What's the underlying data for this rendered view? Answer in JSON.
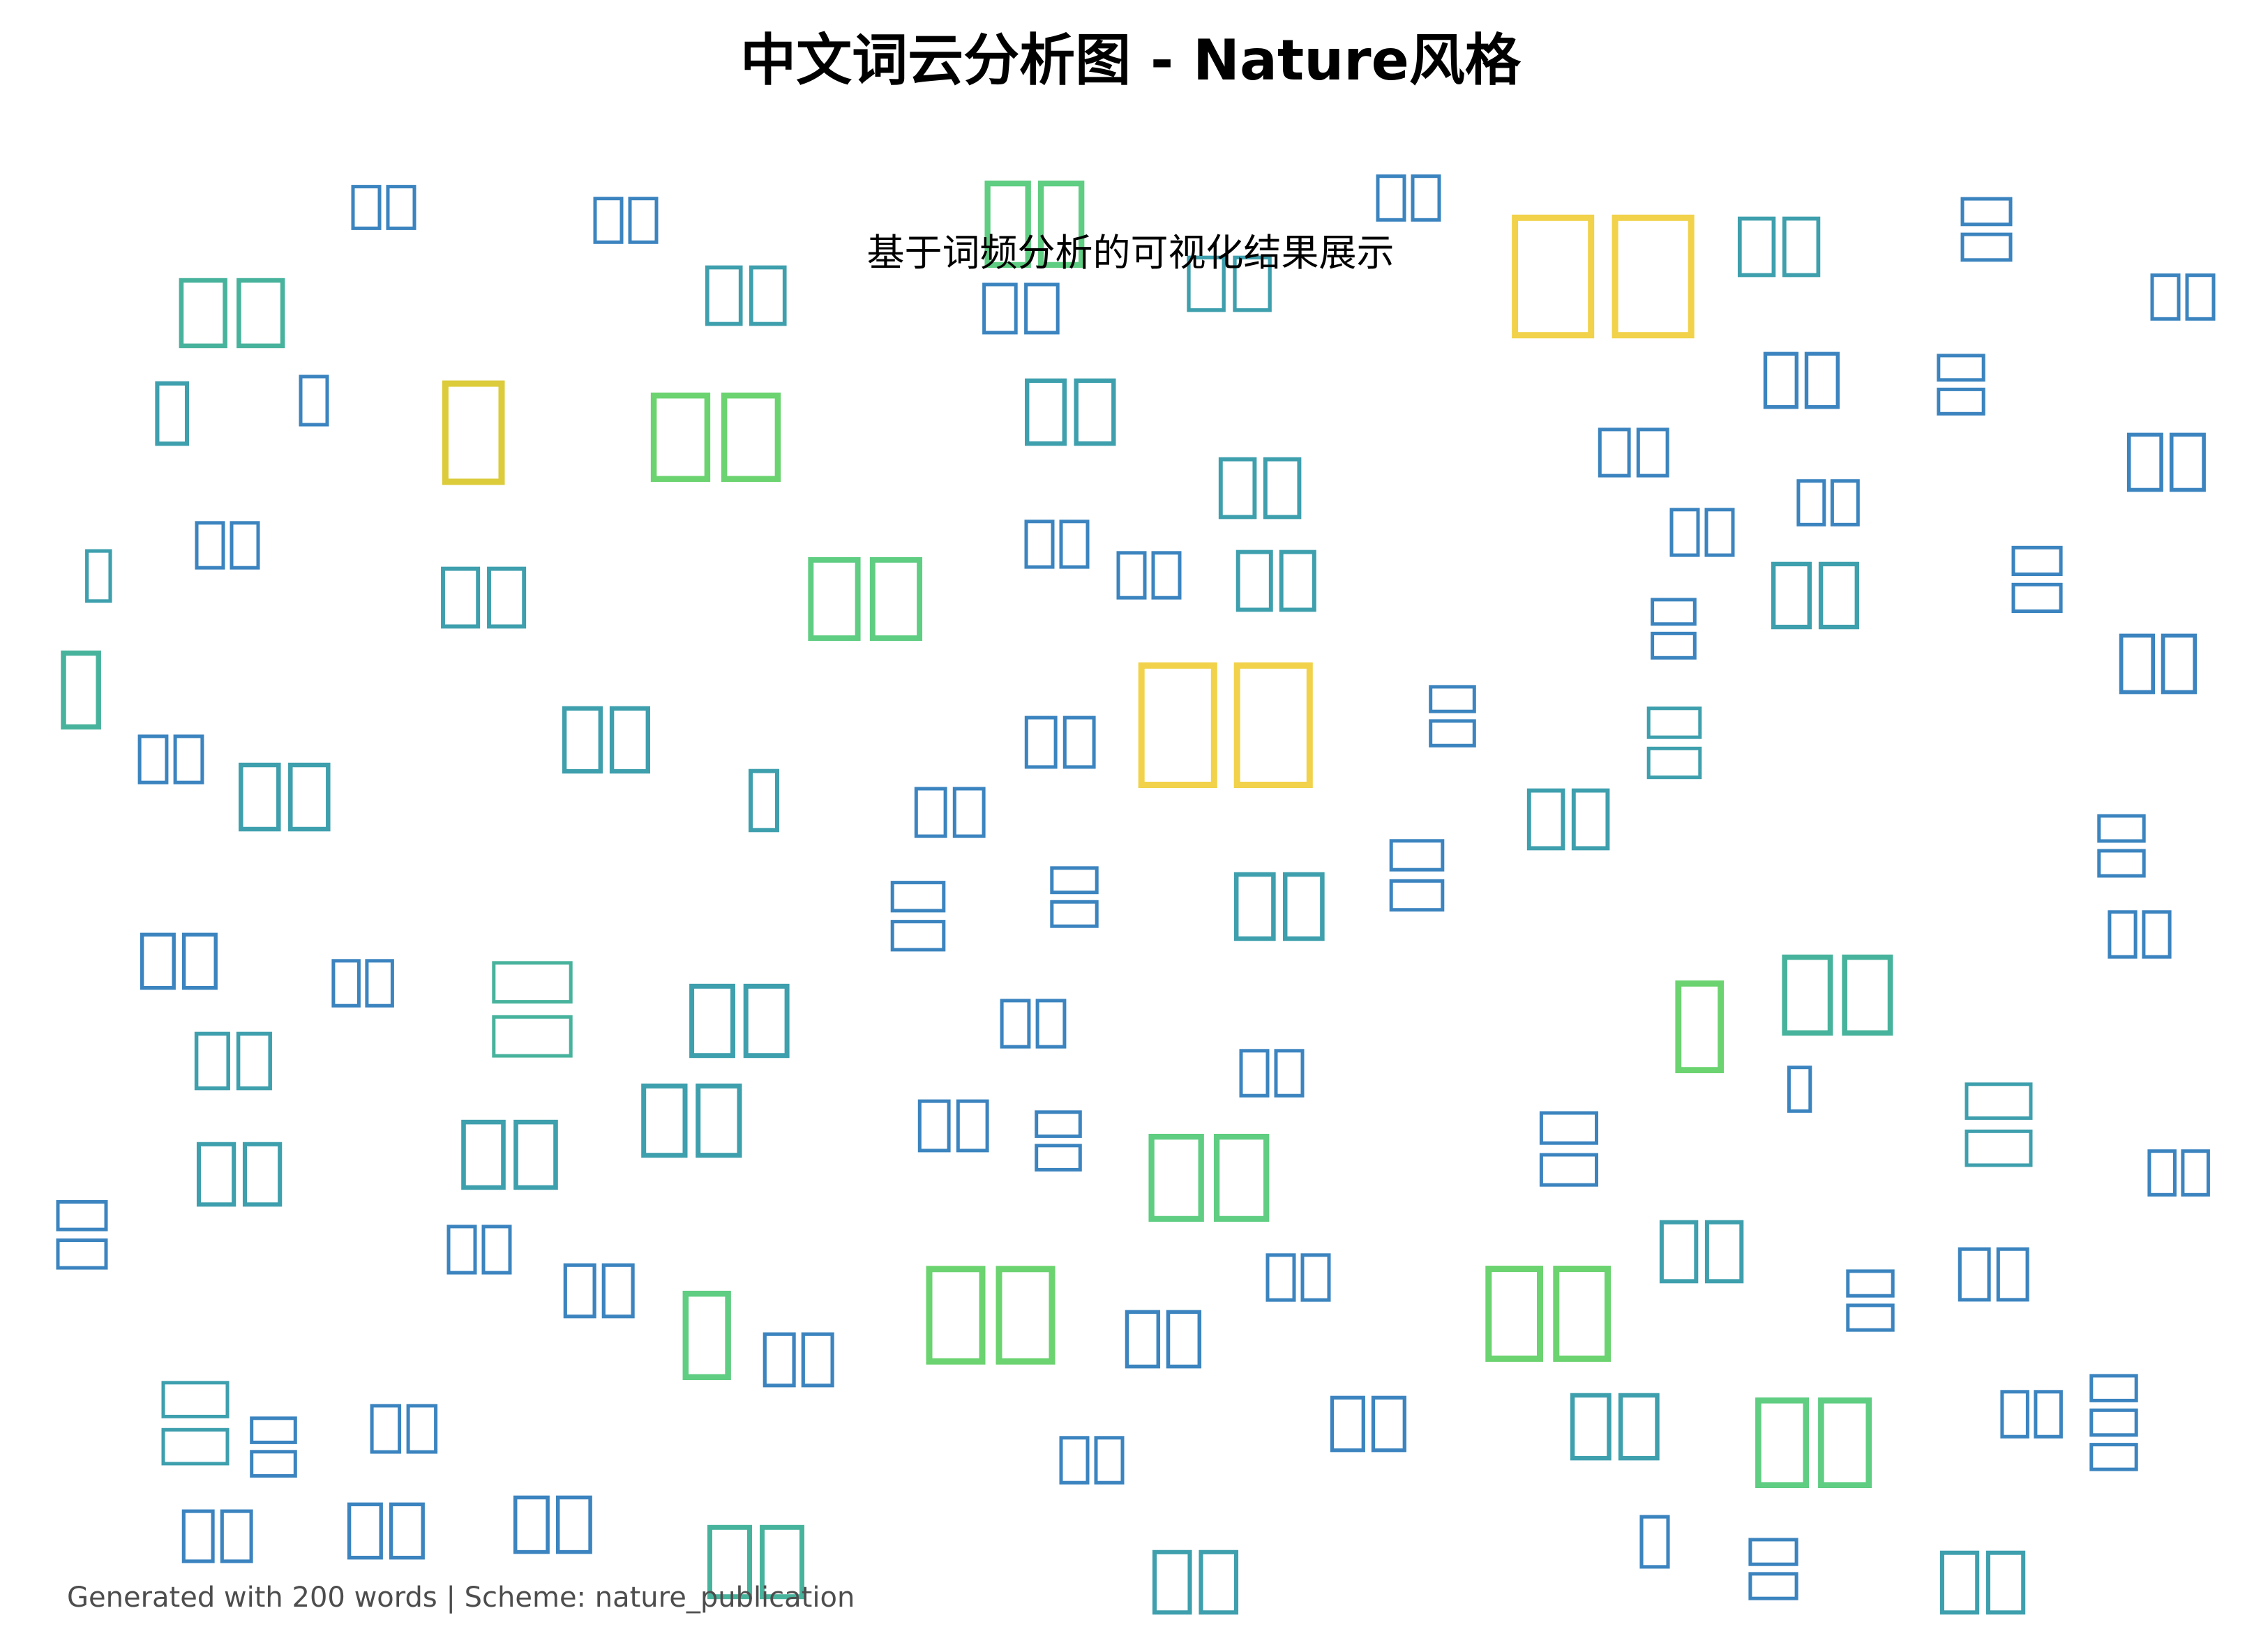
{
  "title": "中文词云分析图 - Nature风格",
  "subtitle": "基于词频分析的可视化结果展示",
  "footer": "Generated with 200 words | Scheme: nature_publication",
  "chart_data": {
    "type": "wordcloud",
    "total_words": 200,
    "color_scheme": "nature_publication",
    "color_scale": [
      "#3b84bf",
      "#3e9fad",
      "#48b39c",
      "#5fcd82",
      "#6bd36f",
      "#dccb3a",
      "#f1d24a"
    ],
    "glyph_rendering": "CJK characters rendered as hollow placeholder boxes"
  }
}
